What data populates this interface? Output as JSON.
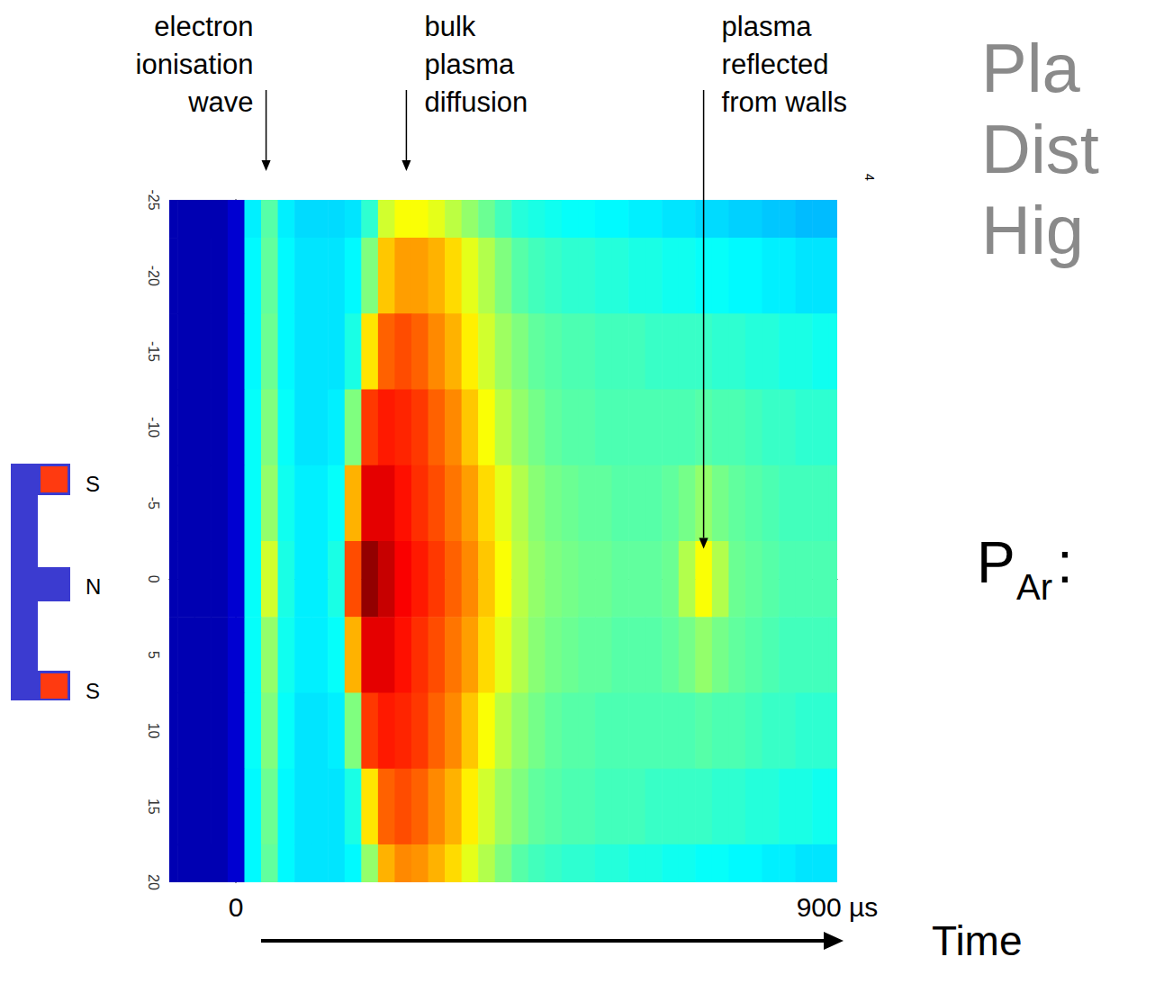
{
  "chart_data": {
    "type": "heatmap",
    "x": [
      -100,
      -75,
      -50,
      -25,
      0,
      25,
      50,
      75,
      100,
      125,
      150,
      175,
      200,
      225,
      250,
      275,
      300,
      325,
      350,
      375,
      400,
      425,
      450,
      475,
      500,
      525,
      550,
      575,
      600,
      625,
      650,
      675,
      700,
      725,
      750,
      775,
      800,
      825,
      850,
      875,
      900
    ],
    "y": [
      -25,
      -20,
      -15,
      -10,
      -5,
      0,
      5,
      10,
      15,
      20
    ],
    "z": [
      [
        0.05,
        0.05,
        0.05,
        0.05,
        0.08,
        0.36,
        0.46,
        0.36,
        0.34,
        0.34,
        0.34,
        0.35,
        0.42,
        0.58,
        0.62,
        0.62,
        0.6,
        0.56,
        0.52,
        0.48,
        0.44,
        0.41,
        0.4,
        0.39,
        0.38,
        0.38,
        0.37,
        0.37,
        0.36,
        0.36,
        0.35,
        0.35,
        0.34,
        0.34,
        0.33,
        0.33,
        0.32,
        0.32,
        0.31,
        0.31,
        0.31
      ],
      [
        0.05,
        0.05,
        0.05,
        0.05,
        0.08,
        0.37,
        0.47,
        0.37,
        0.35,
        0.35,
        0.35,
        0.37,
        0.5,
        0.68,
        0.72,
        0.72,
        0.7,
        0.66,
        0.6,
        0.55,
        0.5,
        0.46,
        0.44,
        0.43,
        0.42,
        0.42,
        0.41,
        0.41,
        0.4,
        0.4,
        0.39,
        0.39,
        0.38,
        0.38,
        0.37,
        0.37,
        0.36,
        0.36,
        0.35,
        0.35,
        0.35
      ],
      [
        0.05,
        0.05,
        0.05,
        0.05,
        0.08,
        0.37,
        0.48,
        0.37,
        0.35,
        0.35,
        0.35,
        0.4,
        0.65,
        0.78,
        0.8,
        0.78,
        0.74,
        0.7,
        0.64,
        0.58,
        0.53,
        0.5,
        0.47,
        0.46,
        0.45,
        0.45,
        0.44,
        0.44,
        0.44,
        0.43,
        0.43,
        0.43,
        0.43,
        0.42,
        0.42,
        0.41,
        0.41,
        0.4,
        0.4,
        0.39,
        0.39
      ],
      [
        0.05,
        0.05,
        0.05,
        0.05,
        0.08,
        0.38,
        0.5,
        0.38,
        0.35,
        0.35,
        0.36,
        0.5,
        0.82,
        0.85,
        0.84,
        0.82,
        0.78,
        0.74,
        0.68,
        0.62,
        0.56,
        0.52,
        0.49,
        0.47,
        0.46,
        0.46,
        0.45,
        0.45,
        0.45,
        0.45,
        0.45,
        0.45,
        0.46,
        0.45,
        0.45,
        0.44,
        0.43,
        0.43,
        0.42,
        0.42,
        0.42
      ],
      [
        0.05,
        0.05,
        0.05,
        0.05,
        0.08,
        0.38,
        0.52,
        0.39,
        0.36,
        0.36,
        0.38,
        0.7,
        0.9,
        0.9,
        0.86,
        0.83,
        0.8,
        0.76,
        0.72,
        0.66,
        0.6,
        0.55,
        0.51,
        0.49,
        0.48,
        0.47,
        0.47,
        0.46,
        0.46,
        0.46,
        0.47,
        0.49,
        0.52,
        0.49,
        0.47,
        0.46,
        0.45,
        0.44,
        0.44,
        0.44,
        0.44
      ],
      [
        0.05,
        0.05,
        0.05,
        0.05,
        0.08,
        0.38,
        0.58,
        0.4,
        0.36,
        0.36,
        0.4,
        0.8,
        0.98,
        0.93,
        0.88,
        0.85,
        0.82,
        0.78,
        0.74,
        0.68,
        0.62,
        0.56,
        0.52,
        0.5,
        0.49,
        0.48,
        0.48,
        0.47,
        0.47,
        0.47,
        0.48,
        0.55,
        0.62,
        0.55,
        0.48,
        0.47,
        0.46,
        0.45,
        0.45,
        0.45,
        0.45
      ],
      [
        0.05,
        0.05,
        0.05,
        0.05,
        0.08,
        0.38,
        0.52,
        0.39,
        0.36,
        0.36,
        0.38,
        0.7,
        0.9,
        0.9,
        0.86,
        0.83,
        0.8,
        0.76,
        0.72,
        0.66,
        0.6,
        0.55,
        0.51,
        0.49,
        0.48,
        0.47,
        0.47,
        0.46,
        0.46,
        0.46,
        0.47,
        0.49,
        0.52,
        0.49,
        0.47,
        0.46,
        0.45,
        0.44,
        0.44,
        0.44,
        0.44
      ],
      [
        0.05,
        0.05,
        0.05,
        0.05,
        0.08,
        0.38,
        0.5,
        0.38,
        0.35,
        0.35,
        0.36,
        0.5,
        0.82,
        0.85,
        0.84,
        0.82,
        0.78,
        0.74,
        0.68,
        0.62,
        0.56,
        0.52,
        0.49,
        0.47,
        0.46,
        0.46,
        0.45,
        0.45,
        0.45,
        0.45,
        0.45,
        0.45,
        0.46,
        0.45,
        0.45,
        0.44,
        0.43,
        0.43,
        0.42,
        0.42,
        0.42
      ],
      [
        0.05,
        0.05,
        0.05,
        0.05,
        0.08,
        0.37,
        0.48,
        0.37,
        0.35,
        0.35,
        0.35,
        0.4,
        0.65,
        0.78,
        0.8,
        0.78,
        0.74,
        0.7,
        0.64,
        0.58,
        0.53,
        0.5,
        0.47,
        0.46,
        0.45,
        0.45,
        0.44,
        0.44,
        0.44,
        0.43,
        0.43,
        0.43,
        0.43,
        0.42,
        0.42,
        0.41,
        0.41,
        0.4,
        0.4,
        0.39,
        0.39
      ],
      [
        0.05,
        0.05,
        0.05,
        0.05,
        0.08,
        0.37,
        0.47,
        0.37,
        0.35,
        0.35,
        0.35,
        0.37,
        0.52,
        0.7,
        0.74,
        0.73,
        0.7,
        0.66,
        0.6,
        0.55,
        0.5,
        0.46,
        0.44,
        0.43,
        0.42,
        0.42,
        0.41,
        0.41,
        0.4,
        0.4,
        0.39,
        0.39,
        0.38,
        0.38,
        0.37,
        0.37,
        0.36,
        0.36,
        0.35,
        0.35,
        0.35
      ]
    ],
    "zlim": [
      0,
      1
    ],
    "xlim": [
      -100,
      900
    ],
    "ylim": [
      -25,
      20
    ],
    "xticks": [
      0,
      {
        "value": 900,
        "label": "900 µs"
      }
    ],
    "yticks": [
      -25,
      -20,
      -15,
      -10,
      -5,
      0,
      5,
      10,
      15,
      20
    ],
    "annotations": [
      {
        "text": [
          "electron",
          "ionisation",
          "wave"
        ],
        "x": 45
      },
      {
        "text": [
          "bulk",
          "plasma",
          "diffusion"
        ],
        "x": 255
      },
      {
        "text": [
          "plasma",
          "reflected",
          "from walls"
        ],
        "x": 700,
        "y": -2
      }
    ],
    "sensor_labels": [
      "S",
      "N",
      "S"
    ],
    "corner_label": "4"
  },
  "slide": {
    "title_fragments": [
      "Pla",
      "Dist",
      "Hig"
    ],
    "pressure_label": {
      "symbol": "P",
      "subscript": "Ar",
      "suffix": ":"
    },
    "time_label": "Time"
  }
}
